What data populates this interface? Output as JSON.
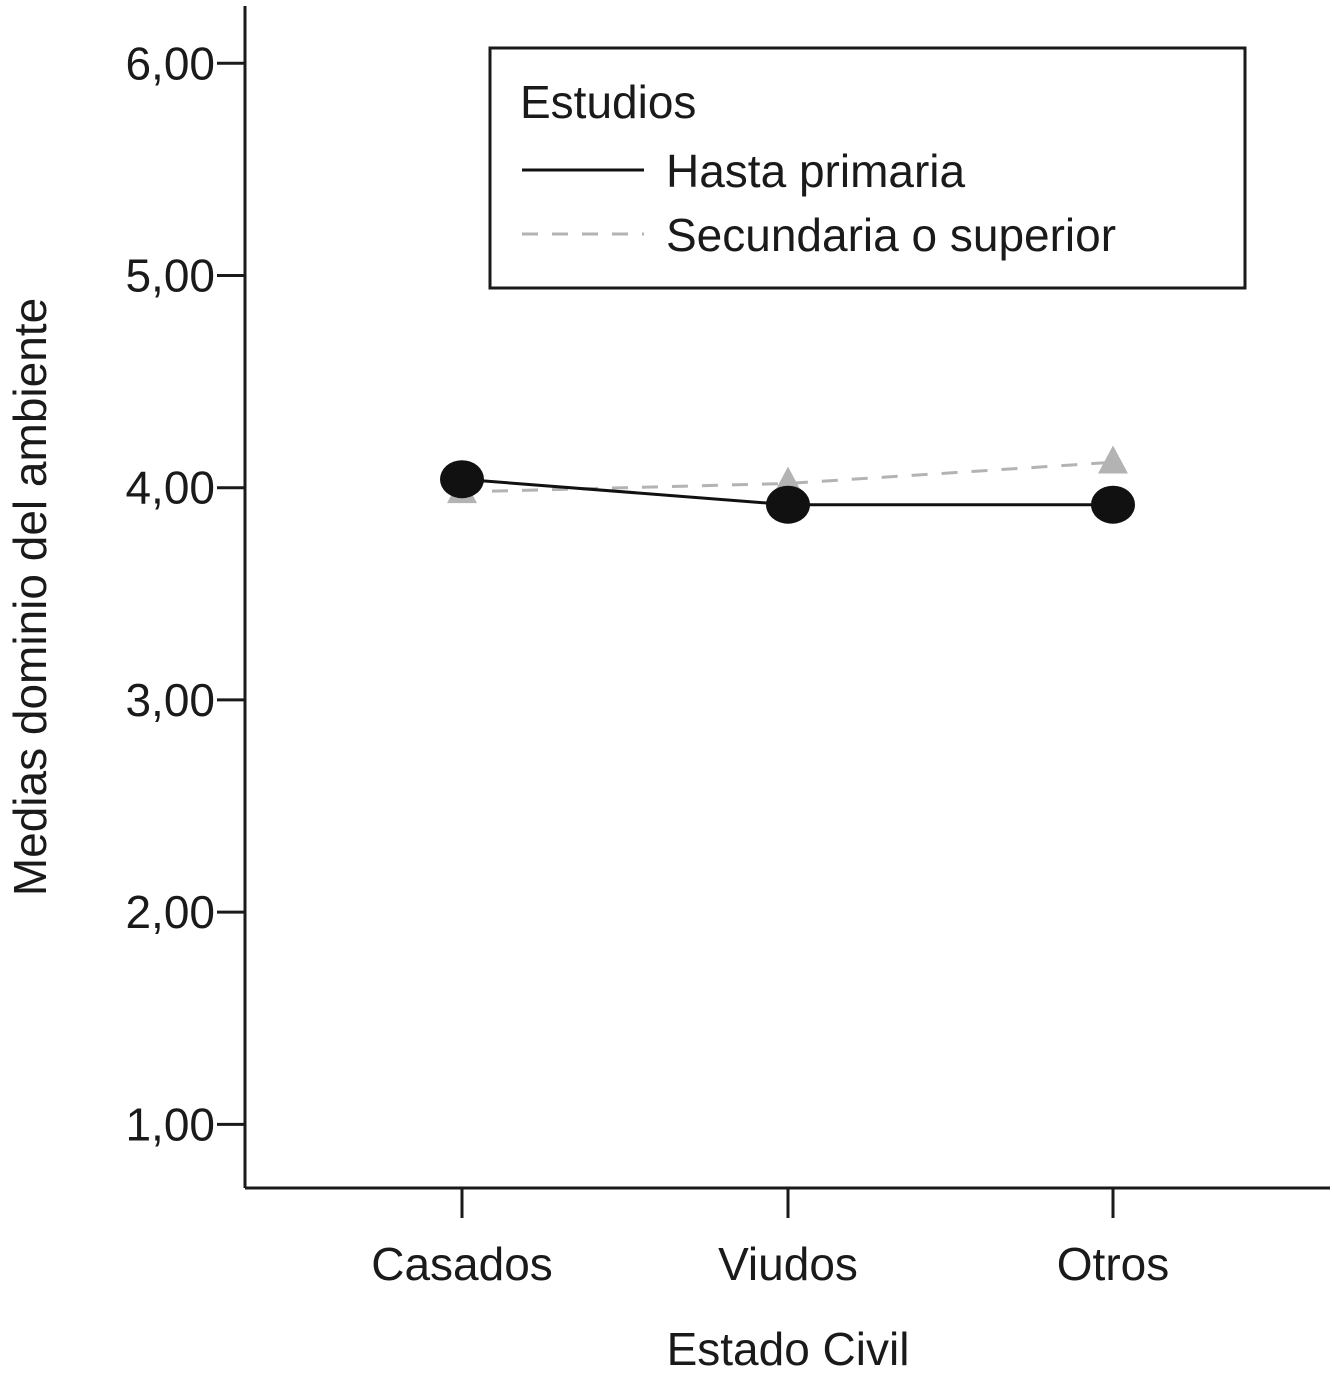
{
  "chart_data": {
    "type": "line",
    "xlabel": "Estado Civil",
    "ylabel": "Medias dominio del ambiente",
    "categories": [
      "Casados",
      "Viudos",
      "Otros"
    ],
    "ylim": [
      0.7,
      6.27
    ],
    "yticks": [
      1,
      2,
      3,
      4,
      5,
      6
    ],
    "ytick_labels": [
      "1,00",
      "2,00",
      "3,00",
      "4,00",
      "5,00",
      "6,00"
    ],
    "legend": {
      "title": "Estudios",
      "placement": "top-right"
    },
    "series": [
      {
        "name": "Hasta primaria",
        "values": [
          4.04,
          3.92,
          3.92
        ],
        "color": "#111111",
        "marker": "circle",
        "line_style": "solid"
      },
      {
        "name": "Secundaria o superior",
        "values": [
          3.98,
          4.02,
          4.12
        ],
        "color": "#b3b3b3",
        "marker": "triangle",
        "line_style": "dashed"
      }
    ],
    "grid": false
  }
}
